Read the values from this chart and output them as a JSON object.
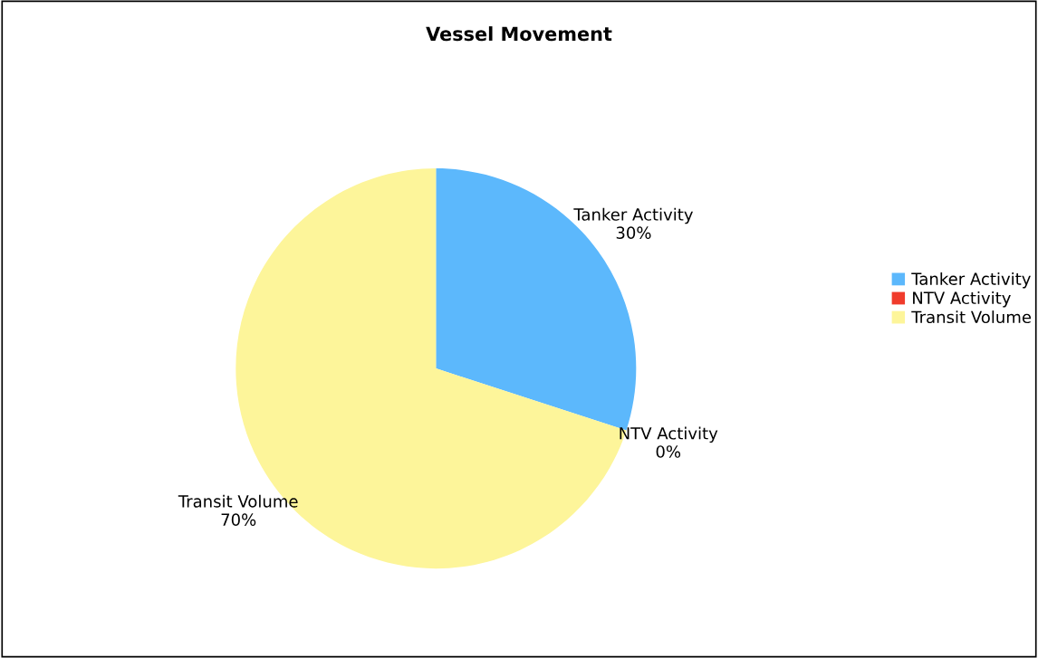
{
  "chart_data": {
    "type": "pie",
    "title": "Vessel Movement",
    "categories": [
      "Tanker Activity",
      "NTV Activity",
      "Transit Volume"
    ],
    "values": [
      30,
      0,
      70
    ],
    "value_labels": [
      "30%",
      "0%",
      "70%"
    ],
    "colors": [
      "#5cb8fc",
      "#f03c2c",
      "#fdf59a"
    ],
    "legend": "right"
  }
}
